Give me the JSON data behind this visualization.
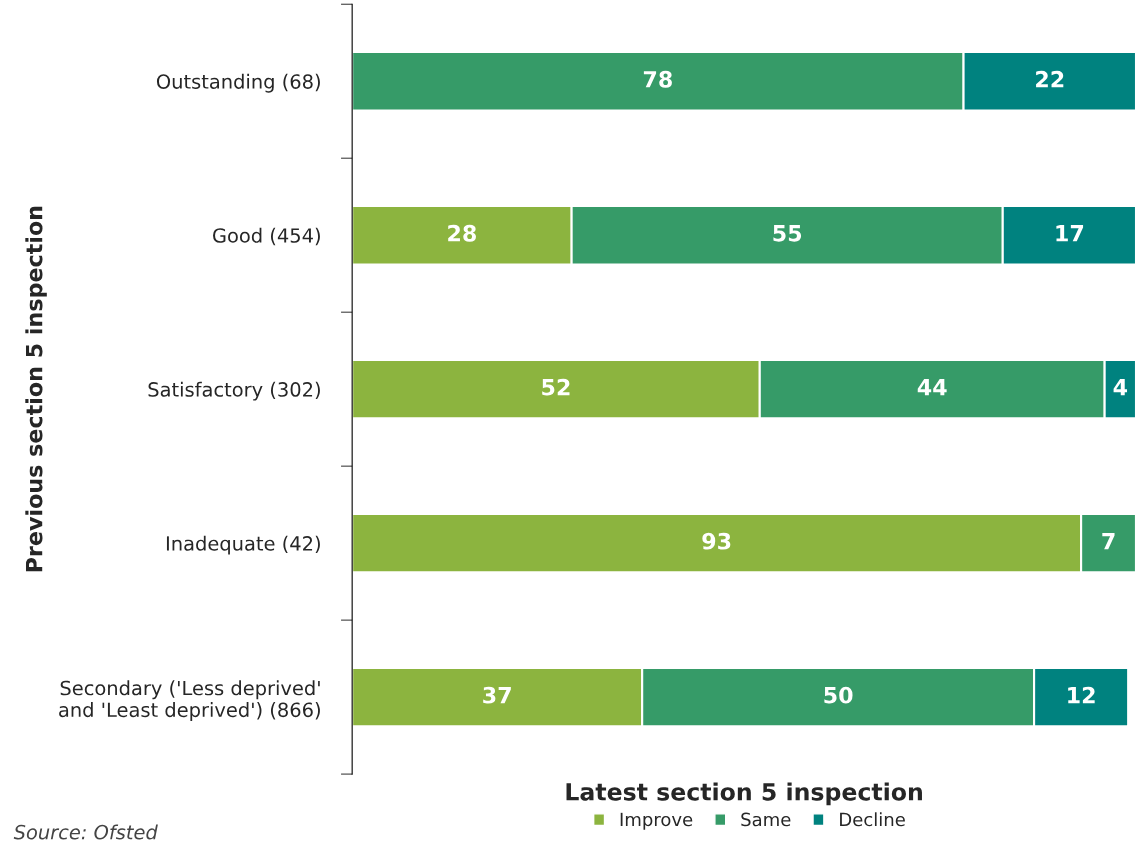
{
  "chart_data": {
    "type": "bar",
    "orientation": "horizontal",
    "stacked": true,
    "data_labels": true,
    "categories": [
      "Outstanding (68)",
      "Good (454)",
      "Satisfactory (302)",
      "Inadequate (42)",
      "Secondary ('Less deprived'\nand 'Least deprived') (866)"
    ],
    "xlabel": "Latest section 5 inspection",
    "ylabel": "Previous section 5 inspection",
    "series": [
      {
        "name": "Improve",
        "color": "#8cb43f",
        "values": [
          null,
          28,
          52,
          93,
          37
        ]
      },
      {
        "name": "Same",
        "color": "#369b68",
        "values": [
          78,
          55,
          44,
          7,
          50
        ]
      },
      {
        "name": "Decline",
        "color": "#00827f",
        "values": [
          22,
          17,
          4,
          null,
          12
        ]
      }
    ],
    "legend": "bottom",
    "grid": false,
    "annotations": [
      "Source: Ofsted"
    ]
  }
}
